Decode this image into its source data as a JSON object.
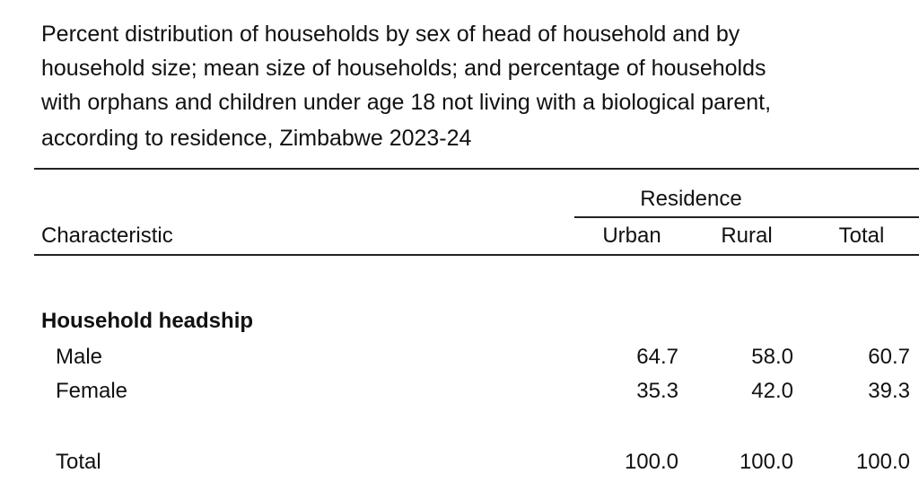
{
  "title_lines": [
    "Percent distribution of households by sex of head of household and by",
    "household size; mean size of households; and percentage of households",
    "with orphans and children under age 18 not living with a biological parent,",
    "according to residence, Zimbabwe 2023-24"
  ],
  "table": {
    "group_header": "Residence",
    "columns": [
      "Characteristic",
      "Urban",
      "Rural",
      "Total"
    ],
    "sections": [
      {
        "heading": "Household headship",
        "rows": [
          [
            "Male",
            "64.7",
            "58.0",
            "60.7"
          ],
          [
            "Female",
            "35.3",
            "42.0",
            "39.3"
          ],
          [
            "Total",
            "100.0",
            "100.0",
            "100.0"
          ]
        ]
      }
    ]
  }
}
